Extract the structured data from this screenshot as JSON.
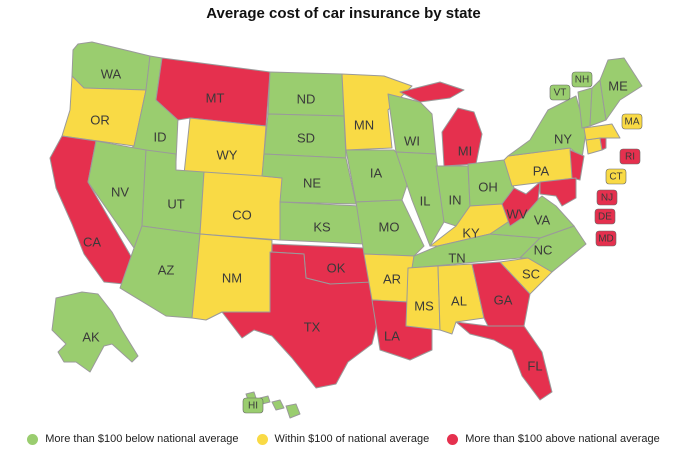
{
  "title": "Average cost of car insurance by state",
  "colors": {
    "green": "#9ACD6F",
    "yellow": "#F9DA45",
    "red": "#E5304E",
    "border": "#9a9a9a"
  },
  "legend": [
    {
      "key": "green",
      "label": "More than $100 below national average"
    },
    {
      "key": "yellow",
      "label": "Within $100 of national average"
    },
    {
      "key": "red",
      "label": "More than $100 above national average"
    }
  ],
  "states": [
    {
      "code": "WA",
      "cat": "green"
    },
    {
      "code": "OR",
      "cat": "yellow"
    },
    {
      "code": "CA",
      "cat": "red"
    },
    {
      "code": "ID",
      "cat": "green"
    },
    {
      "code": "NV",
      "cat": "green"
    },
    {
      "code": "MT",
      "cat": "red"
    },
    {
      "code": "WY",
      "cat": "yellow"
    },
    {
      "code": "UT",
      "cat": "green"
    },
    {
      "code": "AZ",
      "cat": "green"
    },
    {
      "code": "CO",
      "cat": "yellow"
    },
    {
      "code": "NM",
      "cat": "yellow"
    },
    {
      "code": "ND",
      "cat": "green"
    },
    {
      "code": "SD",
      "cat": "green"
    },
    {
      "code": "NE",
      "cat": "green"
    },
    {
      "code": "KS",
      "cat": "green"
    },
    {
      "code": "OK",
      "cat": "red"
    },
    {
      "code": "TX",
      "cat": "red"
    },
    {
      "code": "MN",
      "cat": "yellow"
    },
    {
      "code": "IA",
      "cat": "green"
    },
    {
      "code": "MO",
      "cat": "green"
    },
    {
      "code": "AR",
      "cat": "yellow"
    },
    {
      "code": "LA",
      "cat": "red"
    },
    {
      "code": "WI",
      "cat": "green"
    },
    {
      "code": "IL",
      "cat": "green"
    },
    {
      "code": "MI",
      "cat": "red"
    },
    {
      "code": "IN",
      "cat": "green"
    },
    {
      "code": "OH",
      "cat": "green"
    },
    {
      "code": "KY",
      "cat": "yellow"
    },
    {
      "code": "TN",
      "cat": "green"
    },
    {
      "code": "MS",
      "cat": "yellow"
    },
    {
      "code": "AL",
      "cat": "yellow"
    },
    {
      "code": "GA",
      "cat": "red"
    },
    {
      "code": "FL",
      "cat": "red"
    },
    {
      "code": "SC",
      "cat": "yellow"
    },
    {
      "code": "NC",
      "cat": "green"
    },
    {
      "code": "VA",
      "cat": "green"
    },
    {
      "code": "WV",
      "cat": "red"
    },
    {
      "code": "PA",
      "cat": "yellow"
    },
    {
      "code": "NY",
      "cat": "green"
    },
    {
      "code": "NJ",
      "cat": "red"
    },
    {
      "code": "DE",
      "cat": "red"
    },
    {
      "code": "MD",
      "cat": "red"
    },
    {
      "code": "CT",
      "cat": "yellow"
    },
    {
      "code": "RI",
      "cat": "red"
    },
    {
      "code": "MA",
      "cat": "yellow"
    },
    {
      "code": "VT",
      "cat": "green"
    },
    {
      "code": "NH",
      "cat": "green"
    },
    {
      "code": "ME",
      "cat": "green"
    },
    {
      "code": "AK",
      "cat": "green"
    },
    {
      "code": "HI",
      "cat": "green"
    }
  ]
}
